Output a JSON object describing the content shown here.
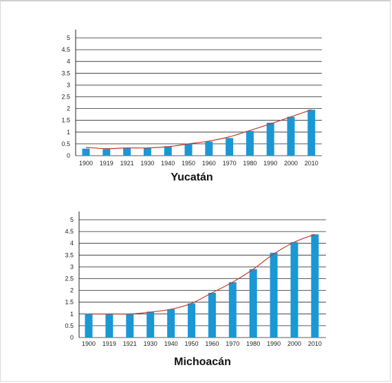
{
  "chart_data": [
    {
      "type": "bar",
      "title": "Yucatán",
      "xlabel": "",
      "ylabel": "",
      "ylim": [
        0,
        5
      ],
      "yticks": [
        "0",
        "0.5",
        "1",
        "1.5",
        "2",
        "2.5",
        "3",
        "3.5",
        "4",
        "4.5",
        "5"
      ],
      "grid": true,
      "categories": [
        "1900",
        "1919",
        "1921",
        "1930",
        "1940",
        "1950",
        "1960",
        "1970",
        "1980",
        "1990",
        "2000",
        "2010"
      ],
      "values": [
        0.3,
        0.28,
        0.32,
        0.32,
        0.4,
        0.5,
        0.6,
        0.75,
        1.05,
        1.4,
        1.65,
        1.95
      ],
      "trend": [
        0.35,
        0.3,
        0.33,
        0.33,
        0.38,
        0.5,
        0.62,
        0.8,
        1.07,
        1.35,
        1.65,
        1.95
      ],
      "bar_color": "#1a98d5",
      "line_color": "#c0392b"
    },
    {
      "type": "bar",
      "title": "Michoacán",
      "xlabel": "",
      "ylabel": "",
      "ylim": [
        0,
        5
      ],
      "yticks": [
        "0",
        "0.5",
        "1",
        "1.5",
        "2",
        "2.5",
        "3",
        "3.5",
        "4",
        "4.5",
        "5"
      ],
      "grid": true,
      "categories": [
        "1900",
        "1919",
        "1921",
        "1930",
        "1940",
        "1950",
        "1960",
        "1970",
        "1980",
        "1990",
        "2000",
        "2010"
      ],
      "values": [
        1.0,
        0.98,
        1.0,
        1.1,
        1.2,
        1.45,
        1.9,
        2.35,
        2.9,
        3.6,
        4.05,
        4.38
      ],
      "trend": [
        1.0,
        1.0,
        1.0,
        1.08,
        1.2,
        1.45,
        1.9,
        2.35,
        2.9,
        3.55,
        4.05,
        4.38
      ],
      "bar_color": "#1a98d5",
      "line_color": "#c0392b"
    }
  ]
}
